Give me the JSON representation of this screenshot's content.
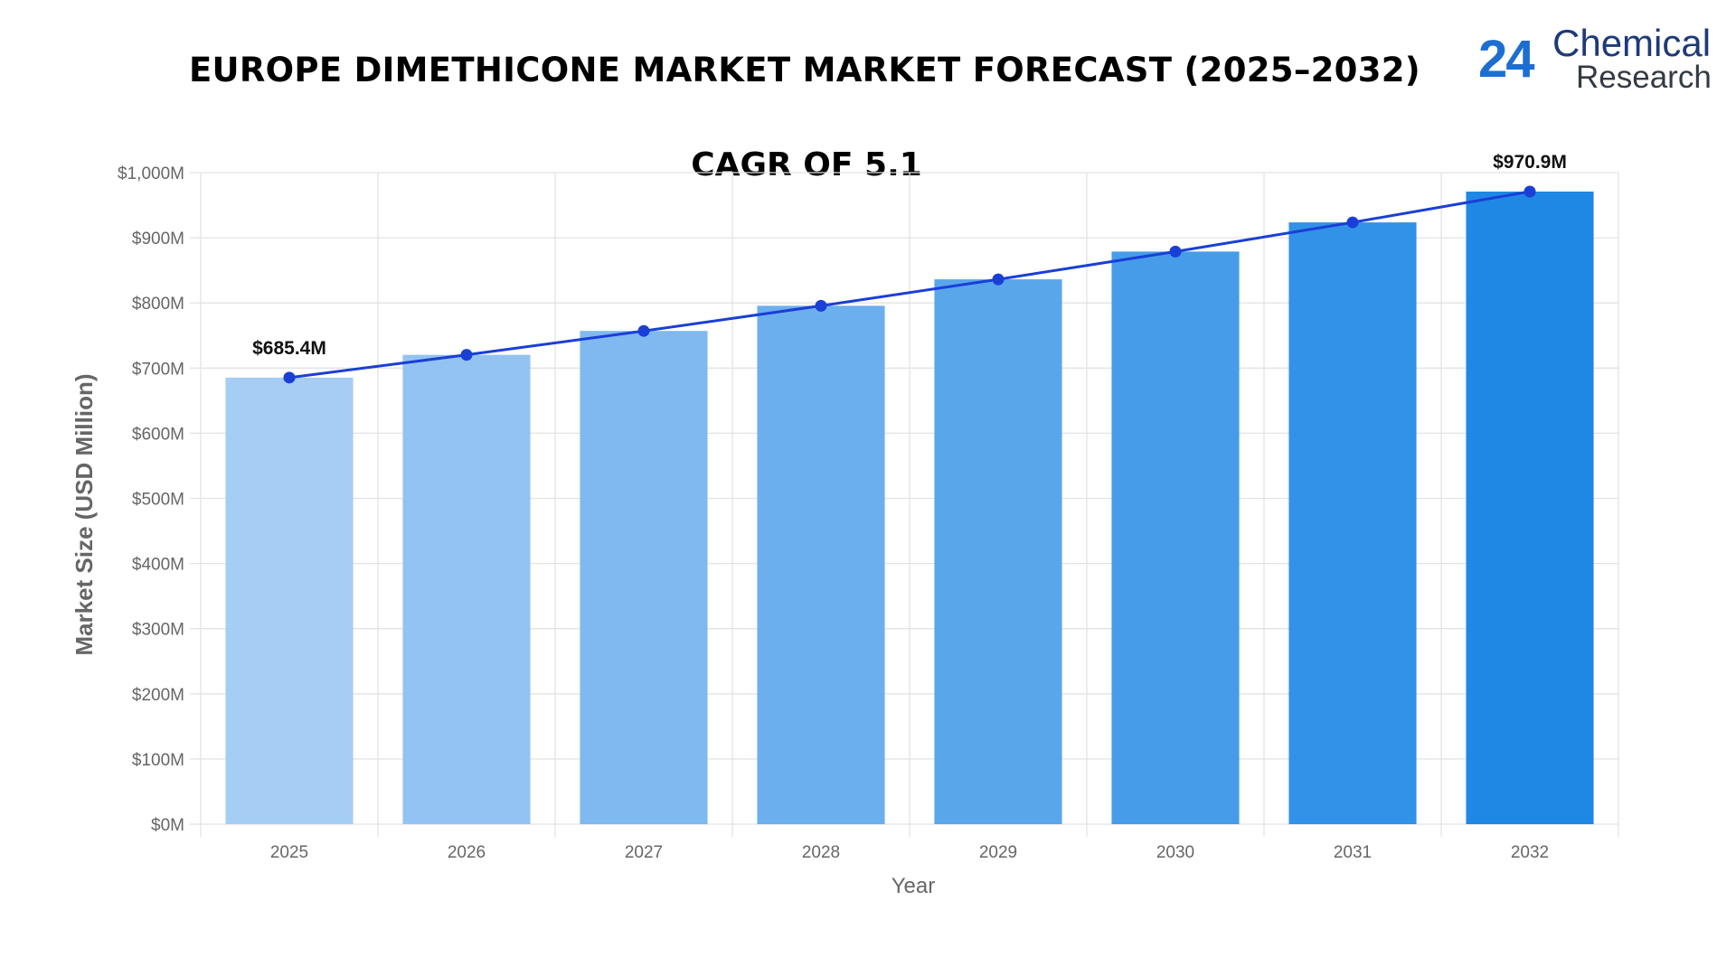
{
  "title": "EUROPE DIMETHICONE MARKET MARKET FORECAST (2025–2032)",
  "subtitle": "CAGR OF 5.1",
  "logo": {
    "number": "24",
    "word1": "Chemical",
    "word2": "Research"
  },
  "colors": {
    "line": "#1a3fd6",
    "bar_start": "#a6cdf4",
    "bar_end": "#1f88e5",
    "grid": "#e3e3e3"
  },
  "chart_data": {
    "type": "bar",
    "title": "EUROPE DIMETHICONE MARKET MARKET FORECAST (2025–2032)",
    "subtitle": "CAGR OF 5.1",
    "xlabel": "Year",
    "ylabel": "Market Size (USD Million)",
    "categories": [
      "2025",
      "2026",
      "2027",
      "2028",
      "2029",
      "2030",
      "2031",
      "2032"
    ],
    "values": [
      685.4,
      720.3,
      757.0,
      795.6,
      836.2,
      878.8,
      923.6,
      970.9
    ],
    "ylim": [
      0,
      1000
    ],
    "yticks": [
      0,
      100,
      200,
      300,
      400,
      500,
      600,
      700,
      800,
      900,
      1000
    ],
    "ytick_labels": [
      "$0M",
      "$100M",
      "$200M",
      "$300M",
      "$400M",
      "$500M",
      "$600M",
      "$700M",
      "$800M",
      "$900M",
      "$1,000M"
    ],
    "overlay": "line with markers through bar tops",
    "data_labels": [
      {
        "index": 0,
        "text": "$685.4M"
      },
      {
        "index": 7,
        "text": "$970.9M"
      }
    ],
    "grid": true,
    "legend": "none"
  }
}
